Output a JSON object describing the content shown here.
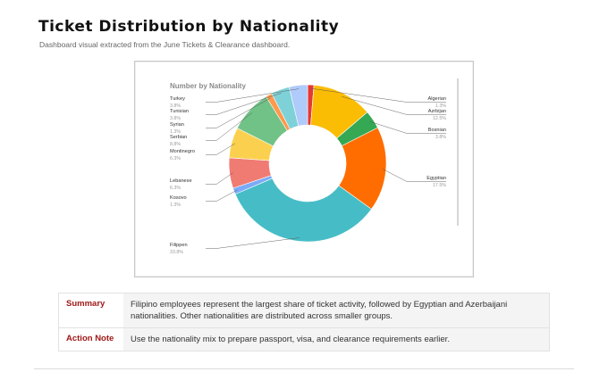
{
  "page": {
    "title": "Ticket Distribution by Nationality",
    "subtitle": "Dashboard visual extracted from the June Tickets & Clearance dashboard."
  },
  "chart_data": {
    "type": "pie",
    "variant": "donut",
    "title": "Number by Nationality",
    "slices": [
      {
        "label": "Algerian",
        "pct_text": "1.3%",
        "value": 1.3,
        "color": "#e53935"
      },
      {
        "label": "Azrbijan",
        "pct_text": "12.5%",
        "value": 12.5,
        "color": "#fbbc04"
      },
      {
        "label": "Bosnian",
        "pct_text": "3.8%",
        "value": 3.8,
        "color": "#34a853"
      },
      {
        "label": "Egyptian",
        "pct_text": "17.5%",
        "value": 17.5,
        "color": "#ff6d01"
      },
      {
        "label": "Filippen",
        "pct_text": "33.8%",
        "value": 33.8,
        "color": "#46bdc6"
      },
      {
        "label": "Kosovo",
        "pct_text": "1.3%",
        "value": 1.3,
        "color": "#7baaf7"
      },
      {
        "label": "Lebanese",
        "pct_text": "6.3%",
        "value": 6.3,
        "color": "#f07b72"
      },
      {
        "label": "Montinegro",
        "pct_text": "6.3%",
        "value": 6.3,
        "color": "#fcd04f"
      },
      {
        "label": "Serbian",
        "pct_text": "8.8%",
        "value": 8.8,
        "color": "#71c287"
      },
      {
        "label": "Syrian",
        "pct_text": "1.3%",
        "value": 1.3,
        "color": "#ff994d"
      },
      {
        "label": "Tunisian",
        "pct_text": "3.8%",
        "value": 3.8,
        "color": "#7ed1d7"
      },
      {
        "label": "Turkey",
        "pct_text": "3.8%",
        "value": 3.8,
        "color": "#afcbfa"
      }
    ]
  },
  "notes": [
    {
      "key": "Summary",
      "text": "Filipino employees represent the largest share of ticket activity, followed by Egyptian and Azerbaijani nationalities. Other nationalities are distributed across smaller groups."
    },
    {
      "key": "Action Note",
      "text": "Use the nationality mix to prepare passport, visa, and clearance requirements earlier."
    }
  ]
}
